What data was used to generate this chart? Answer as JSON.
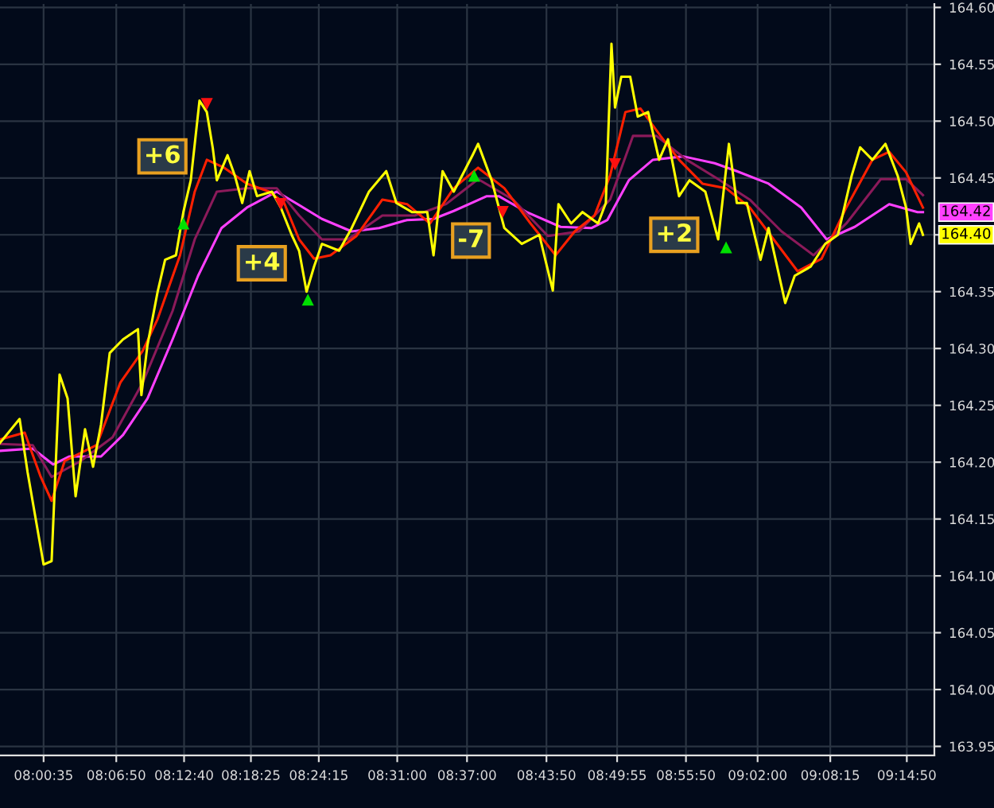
{
  "chart_data": {
    "type": "line",
    "xlim": [
      7.9472,
      9.2867
    ],
    "ylim": [
      163.942,
      164.603
    ],
    "xticks": [
      {
        "value": 8.0097,
        "label": "08:00:35"
      },
      {
        "value": 8.1139,
        "label": "08:06:50"
      },
      {
        "value": 8.2111,
        "label": "08:12:40"
      },
      {
        "value": 8.3069,
        "label": "08:18:25"
      },
      {
        "value": 8.4042,
        "label": "08:24:15"
      },
      {
        "value": 8.5167,
        "label": "08:31:00"
      },
      {
        "value": 8.6167,
        "label": "08:37:00"
      },
      {
        "value": 8.7306,
        "label": "08:43:50"
      },
      {
        "value": 8.8319,
        "label": "08:49:55"
      },
      {
        "value": 8.9306,
        "label": "08:55:50"
      },
      {
        "value": 9.0333,
        "label": "09:02:00"
      },
      {
        "value": 9.1375,
        "label": "09:08:15"
      },
      {
        "value": 9.2472,
        "label": "09:14:50"
      }
    ],
    "yticks": [
      {
        "value": 163.95,
        "label": "163.95"
      },
      {
        "value": 164.0,
        "label": "164.00"
      },
      {
        "value": 164.05,
        "label": "164.05"
      },
      {
        "value": 164.1,
        "label": "164.10"
      },
      {
        "value": 164.15,
        "label": "164.15"
      },
      {
        "value": 164.2,
        "label": "164.20"
      },
      {
        "value": 164.25,
        "label": "164.25"
      },
      {
        "value": 164.3,
        "label": "164.30"
      },
      {
        "value": 164.35,
        "label": "164.35"
      },
      {
        "value": 164.4,
        "label": null
      },
      {
        "value": 164.45,
        "label": "164.45"
      },
      {
        "value": 164.5,
        "label": "164.50"
      },
      {
        "value": 164.55,
        "label": "164.55"
      },
      {
        "value": 164.6,
        "label": "164.60"
      }
    ],
    "grid": true,
    "legend": false,
    "marker": "none",
    "line_style": "solid",
    "series": [
      {
        "color": "#ff40ff",
        "x": [
          7.9472,
          7.9941,
          8.0233,
          8.0462,
          8.092,
          8.1236,
          8.1586,
          8.1946,
          8.2312,
          8.2648,
          8.3012,
          8.3439,
          8.3711,
          8.4087,
          8.4514,
          8.4908,
          8.5307,
          8.5687,
          8.5977,
          8.6451,
          8.6622,
          8.7021,
          8.7508,
          8.7954,
          8.8178,
          8.8487,
          8.8832,
          8.9266,
          8.9717,
          9.0035,
          9.049,
          9.0958,
          9.1323,
          9.1726,
          9.222,
          9.2626,
          9.2703
        ],
        "values": [
          164.21,
          164.212,
          164.198,
          164.205,
          164.205,
          164.224,
          164.256,
          164.308,
          164.364,
          164.406,
          164.424,
          164.438,
          164.428,
          164.414,
          164.403,
          164.406,
          164.413,
          164.414,
          164.421,
          164.434,
          164.434,
          164.42,
          164.407,
          164.406,
          164.413,
          164.448,
          164.466,
          164.469,
          164.463,
          164.456,
          164.445,
          164.424,
          164.396,
          164.407,
          164.427,
          164.42,
          164.42
        ],
        "value_labels": [
          null,
          null,
          null,
          null,
          null,
          null,
          null,
          null,
          null,
          null,
          null,
          null,
          null,
          null,
          null,
          null,
          null,
          null,
          null,
          null,
          null,
          null,
          null,
          null,
          null,
          null,
          null,
          null,
          null,
          null,
          null,
          null,
          null,
          null,
          null,
          null,
          "164.42"
        ]
      },
      {
        "color": "#8b1a5a",
        "x": [
          7.9472,
          7.9941,
          8.0212,
          8.0628,
          8.1087,
          8.1518,
          8.1946,
          8.2264,
          8.2581,
          8.3012,
          8.3439,
          8.376,
          8.4087,
          8.4458,
          8.4953,
          8.5417,
          8.5867,
          8.6326,
          8.6827,
          8.7326,
          8.7772,
          8.8218,
          8.8546,
          8.8882,
          8.9316,
          8.9768,
          9.022,
          9.0677,
          9.1135,
          9.1605,
          9.2099,
          9.2461,
          9.2703
        ],
        "values": [
          164.216,
          164.215,
          164.187,
          164.201,
          164.222,
          164.27,
          164.333,
          164.396,
          164.438,
          164.441,
          164.441,
          164.417,
          164.396,
          164.396,
          164.417,
          164.417,
          164.427,
          164.449,
          164.431,
          164.399,
          164.403,
          164.431,
          164.487,
          164.487,
          164.466,
          164.449,
          164.431,
          164.403,
          164.382,
          164.41,
          164.449,
          164.449,
          164.435
        ]
      },
      {
        "color": "#ff2000",
        "x": [
          7.9472,
          7.9826,
          8.0056,
          8.0212,
          8.0399,
          8.0628,
          8.0858,
          8.1197,
          8.1518,
          8.1732,
          8.2053,
          8.2264,
          8.2437,
          8.2686,
          8.3012,
          8.3332,
          8.3546,
          8.376,
          8.3974,
          8.421,
          8.4582,
          8.4953,
          8.5307,
          8.5637,
          8.5977,
          8.6326,
          8.6702,
          8.7078,
          8.7437,
          8.7711,
          8.7995,
          8.8218,
          8.8438,
          8.8655,
          8.8941,
          8.9207,
          8.9542,
          8.9881,
          9.022,
          9.0563,
          9.0906,
          9.125,
          9.1605,
          9.1978,
          9.222,
          9.2461,
          9.2703
        ],
        "values": [
          164.22,
          164.226,
          164.187,
          164.166,
          164.201,
          164.208,
          164.215,
          164.27,
          164.298,
          164.326,
          164.382,
          164.438,
          164.466,
          164.459,
          164.445,
          164.438,
          164.428,
          164.396,
          164.379,
          164.382,
          164.399,
          164.431,
          164.427,
          164.41,
          164.441,
          164.459,
          164.441,
          164.41,
          164.382,
          164.403,
          164.417,
          164.452,
          164.508,
          164.511,
          164.487,
          164.466,
          164.445,
          164.441,
          164.424,
          164.396,
          164.368,
          164.379,
          164.424,
          164.466,
          164.473,
          164.455,
          164.424
        ]
      },
      {
        "color": "#ffff00",
        "x": [
          7.9472,
          7.9753,
          7.9868,
          8.0097,
          8.0212,
          8.0326,
          8.0441,
          8.0556,
          8.0691,
          8.0806,
          8.092,
          8.1045,
          8.1236,
          8.145,
          8.1499,
          8.1586,
          8.1732,
          8.1839,
          8.1994,
          8.2101,
          8.2207,
          8.2332,
          8.2437,
          8.2523,
          8.2581,
          8.2734,
          8.2839,
          8.2945,
          8.305,
          8.3157,
          8.3371,
          8.3497,
          8.3653,
          8.376,
          8.3867,
          8.3974,
          8.4087,
          8.4334,
          8.4514,
          8.4762,
          8.5009,
          8.5155,
          8.5377,
          8.5597,
          8.5687,
          8.5817,
          8.5977,
          8.6246,
          8.6326,
          8.652,
          8.6702,
          8.6952,
          8.7203,
          8.7397,
          8.7478,
          8.766,
          8.7823,
          8.8046,
          8.8157,
          8.8238,
          8.8289,
          8.8379,
          8.8507,
          8.8615,
          8.8763,
          8.8921,
          8.9049,
          8.9207,
          8.9357,
          8.9583,
          8.9768,
          8.9922,
          9.0035,
          9.0179,
          9.0375,
          9.049,
          9.0729,
          9.0865,
          9.1094,
          9.1302,
          9.1485,
          9.1682,
          9.1803,
          9.1978,
          9.2165,
          9.2341,
          9.2461,
          9.2527,
          9.2648,
          9.2703
        ],
        "values": [
          164.217,
          164.238,
          164.191,
          164.11,
          164.113,
          164.277,
          164.256,
          164.17,
          164.229,
          164.196,
          164.233,
          164.296,
          164.308,
          164.317,
          164.259,
          164.303,
          164.35,
          164.378,
          164.382,
          164.42,
          164.448,
          164.518,
          164.508,
          164.476,
          164.448,
          164.47,
          164.452,
          164.428,
          164.456,
          164.434,
          164.438,
          164.424,
          164.4,
          164.386,
          164.35,
          164.372,
          164.392,
          164.386,
          164.406,
          164.438,
          164.456,
          164.428,
          164.42,
          164.42,
          164.382,
          164.456,
          164.438,
          164.47,
          164.48,
          164.448,
          164.406,
          164.392,
          164.4,
          164.351,
          164.427,
          164.41,
          164.42,
          164.41,
          164.428,
          164.568,
          164.512,
          164.539,
          164.539,
          164.504,
          164.508,
          164.466,
          164.484,
          164.434,
          164.448,
          164.438,
          164.396,
          164.48,
          164.428,
          164.428,
          164.378,
          164.406,
          164.34,
          164.364,
          164.372,
          164.392,
          164.4,
          164.452,
          164.477,
          164.466,
          164.48,
          164.452,
          164.424,
          164.392,
          164.41,
          164.4
        ],
        "value_labels": [
          null,
          null,
          null,
          null,
          null,
          null,
          null,
          null,
          null,
          null,
          null,
          null,
          null,
          null,
          null,
          null,
          null,
          null,
          null,
          null,
          null,
          null,
          null,
          null,
          null,
          null,
          null,
          null,
          null,
          null,
          null,
          null,
          null,
          null,
          null,
          null,
          null,
          null,
          null,
          null,
          null,
          null,
          null,
          null,
          null,
          null,
          null,
          null,
          null,
          null,
          null,
          null,
          null,
          null,
          null,
          null,
          null,
          null,
          null,
          null,
          null,
          null,
          null,
          null,
          null,
          null,
          null,
          null,
          null,
          null,
          null,
          null,
          null,
          null,
          null,
          null,
          null,
          null,
          null,
          null,
          null,
          null,
          null,
          null,
          null,
          null,
          null,
          null,
          null,
          "164.40"
        ]
      },
      {
        "type": "scatter",
        "marker": "triangle",
        "color": "#00e000",
        "x": [
          8.2101,
          8.3886,
          8.6269,
          8.9881
        ],
        "values": [
          164.41,
          164.343,
          164.452,
          164.389
        ]
      },
      {
        "type": "scatter",
        "marker": "triangle",
        "color": "#ff1010",
        "x": [
          8.2437,
          8.3497,
          8.6679,
          8.8289
        ],
        "values": [
          164.515,
          164.427,
          164.42,
          164.462
        ]
      }
    ],
    "annotations": [
      {
        "text": "+6",
        "x": 8.18,
        "y": 164.469
      },
      {
        "text": "+4",
        "x": 8.3225,
        "y": 164.375
      },
      {
        "text": "-7",
        "x": 8.6224,
        "y": 164.395
      },
      {
        "text": "+2",
        "x": 8.9138,
        "y": 164.4
      }
    ]
  }
}
